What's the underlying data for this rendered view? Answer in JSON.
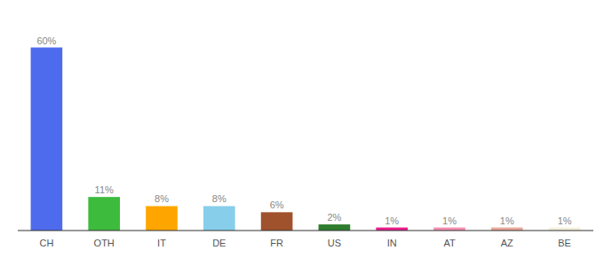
{
  "chart_data": {
    "type": "bar",
    "categories": [
      "CH",
      "OTH",
      "IT",
      "DE",
      "FR",
      "US",
      "IN",
      "AT",
      "AZ",
      "BE"
    ],
    "values": [
      60,
      11,
      8,
      8,
      6,
      2,
      1,
      1,
      1,
      1
    ],
    "value_labels": [
      "60%",
      "11%",
      "8%",
      "8%",
      "6%",
      "2%",
      "1%",
      "1%",
      "1%",
      "1%"
    ],
    "colors": [
      "#4F6BED",
      "#3DBB3D",
      "#FFA500",
      "#87CEEB",
      "#A0522D",
      "#2E7D2E",
      "#E91E8C",
      "#F48FB1",
      "#E8A898",
      "#F5F0DC"
    ],
    "ylim": [
      0,
      68
    ],
    "data_labels": true,
    "tick_labels": "x",
    "grid": false
  }
}
